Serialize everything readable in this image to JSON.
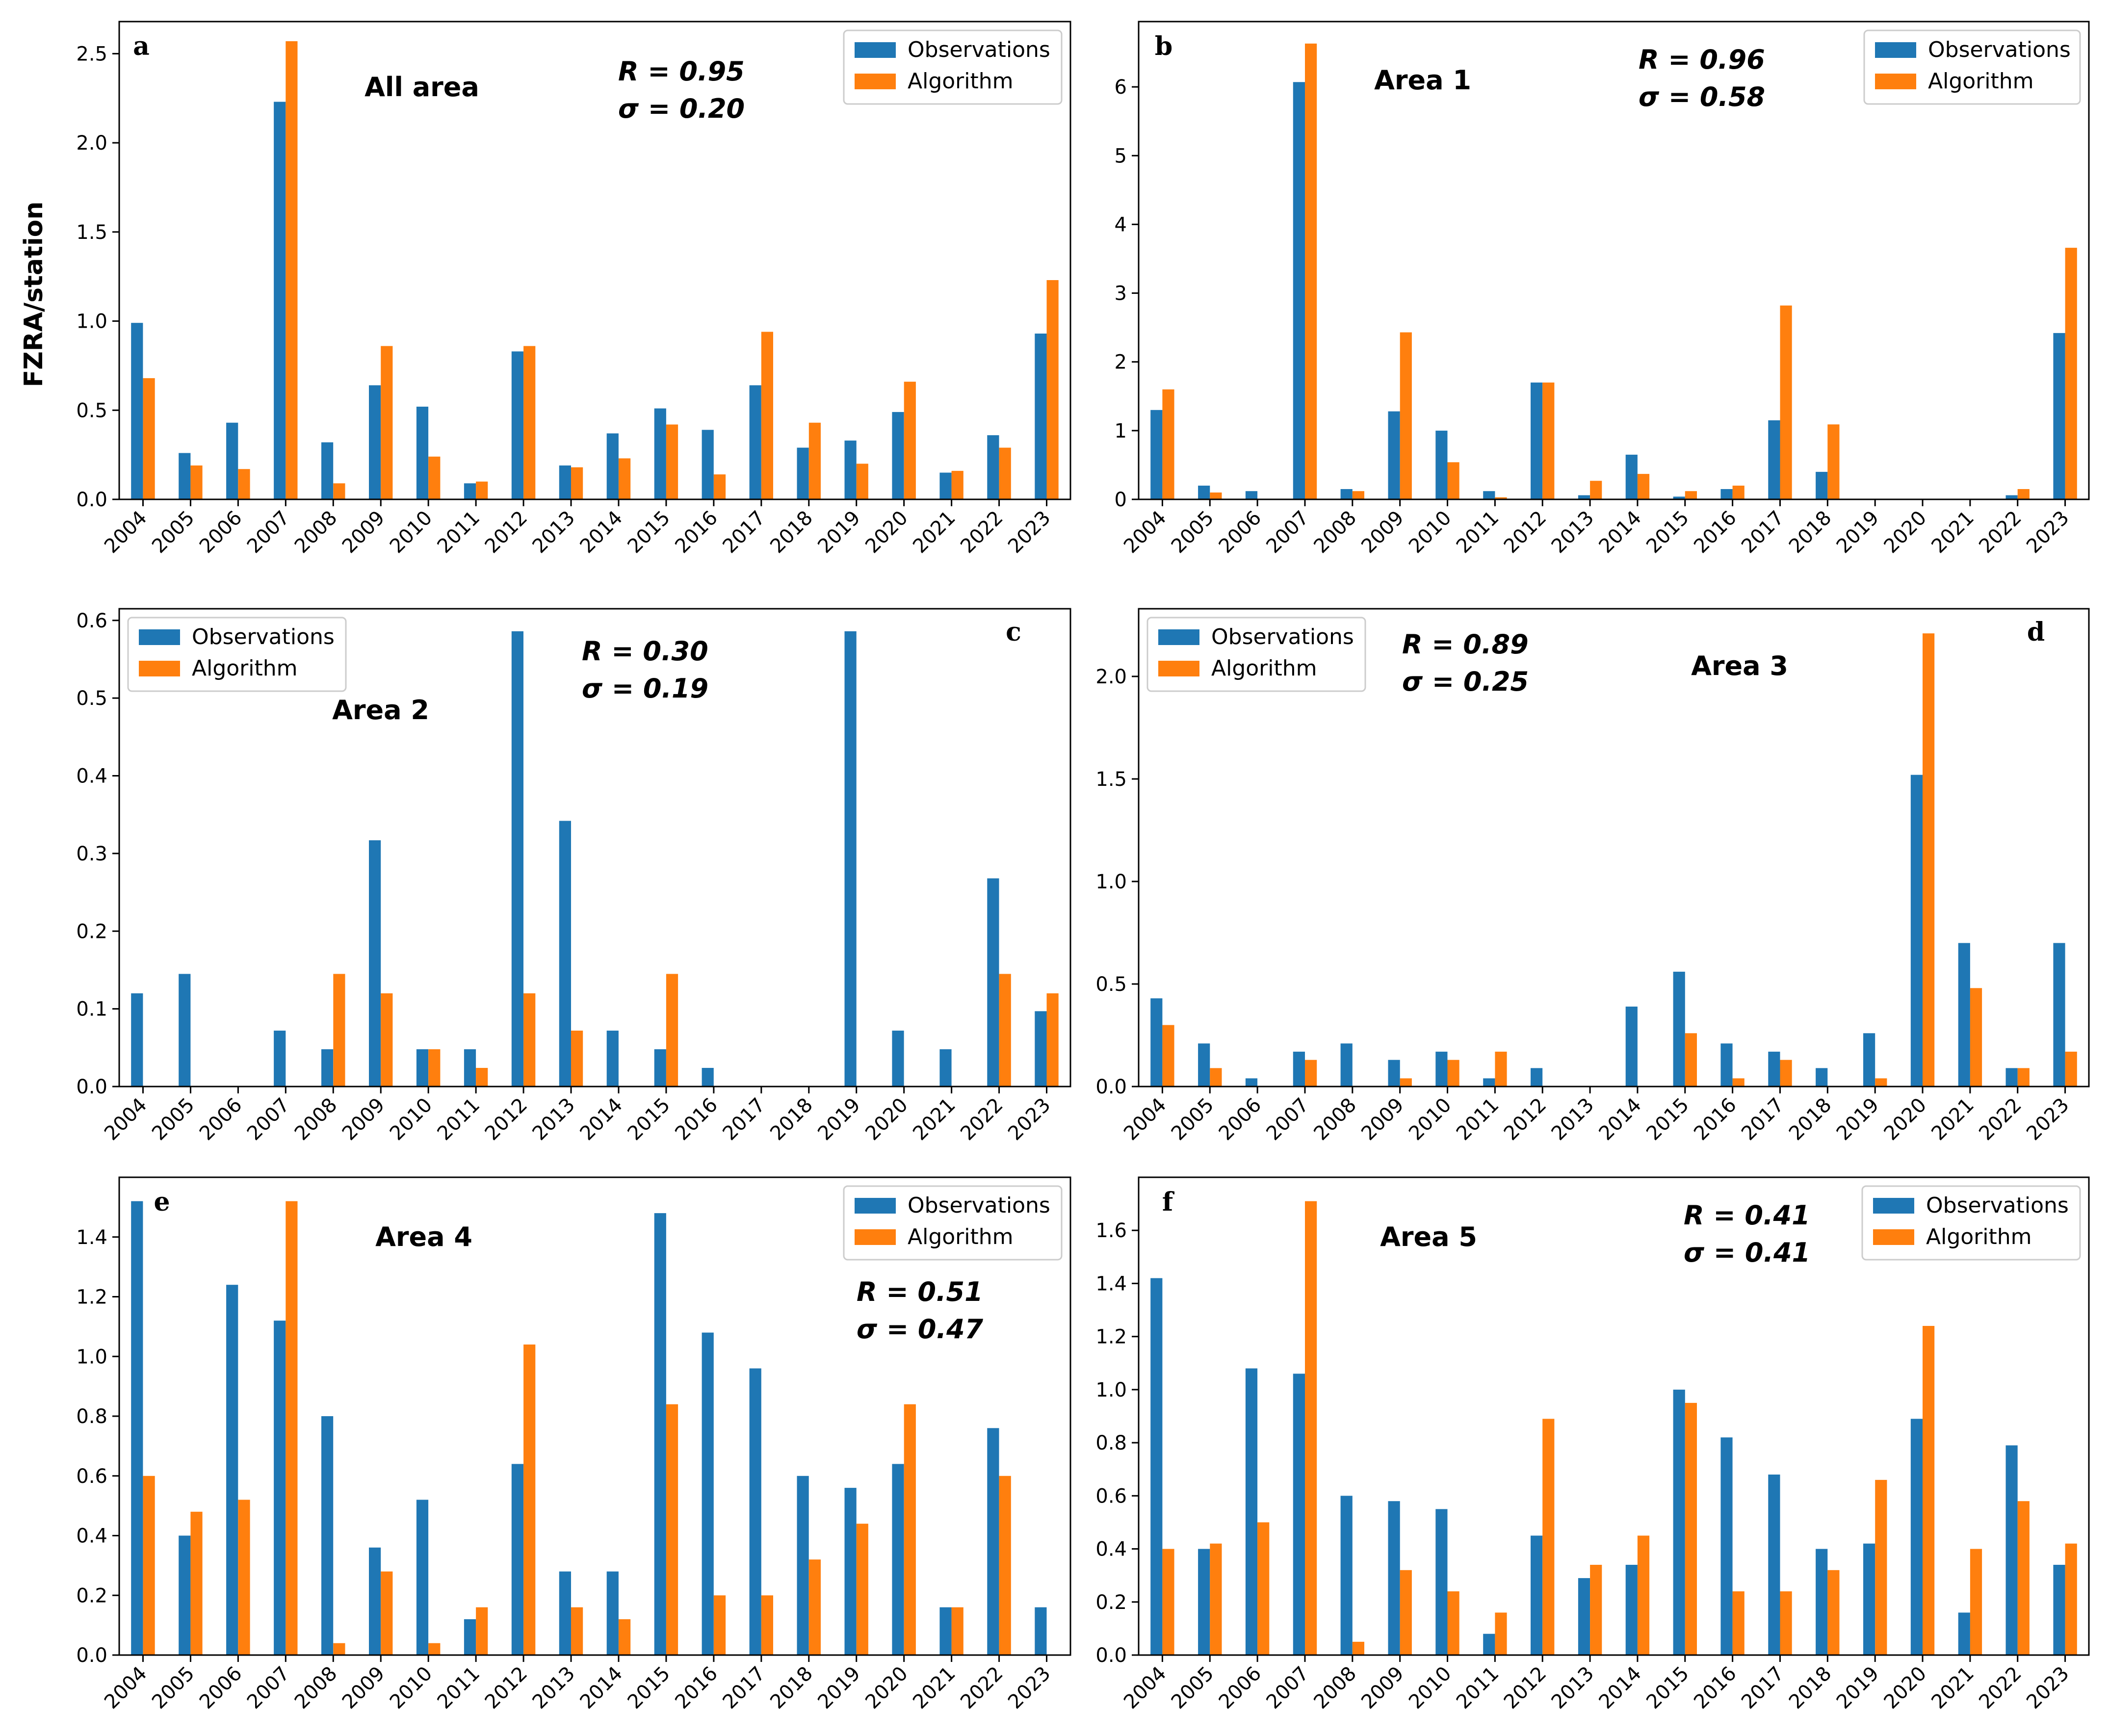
{
  "colors": {
    "observations": "#1f77b4",
    "algorithm": "#ff7f0e"
  },
  "ylabel": "FZRA/station",
  "chart_data": [
    {
      "type": "bar",
      "panel": "a",
      "title": "All area",
      "R": "R = 0.95",
      "sigma": "σ = 0.20",
      "categories": [
        "2004",
        "2005",
        "2006",
        "2007",
        "2008",
        "2009",
        "2010",
        "2011",
        "2012",
        "2013",
        "2014",
        "2015",
        "2016",
        "2017",
        "2018",
        "2019",
        "2020",
        "2021",
        "2022",
        "2023"
      ],
      "series": [
        {
          "name": "Observations",
          "values": [
            0.99,
            0.26,
            0.43,
            2.23,
            0.32,
            0.64,
            0.52,
            0.09,
            0.83,
            0.19,
            0.37,
            0.51,
            0.39,
            0.64,
            0.29,
            0.33,
            0.49,
            0.15,
            0.36,
            0.93
          ]
        },
        {
          "name": "Algorithm",
          "values": [
            0.68,
            0.19,
            0.17,
            2.57,
            0.09,
            0.86,
            0.24,
            0.1,
            0.86,
            0.18,
            0.23,
            0.42,
            0.14,
            0.94,
            0.43,
            0.2,
            0.66,
            0.16,
            0.29,
            1.23
          ]
        }
      ],
      "ylim": [
        0,
        2.68
      ],
      "yticks": [
        0,
        0.5,
        1.0,
        1.5,
        2.0,
        2.5
      ],
      "ytick_labels": [
        "0.0",
        "0.5",
        "1.0",
        "1.5",
        "2.0",
        "2.5"
      ],
      "legend": "top-right",
      "xlabel": "",
      "ylabel": "FZRA/station"
    },
    {
      "type": "bar",
      "panel": "b",
      "title": "Area 1",
      "R": "R = 0.96",
      "sigma": "σ = 0.58",
      "categories": [
        "2004",
        "2005",
        "2006",
        "2007",
        "2008",
        "2009",
        "2010",
        "2011",
        "2012",
        "2013",
        "2014",
        "2015",
        "2016",
        "2017",
        "2018",
        "2019",
        "2020",
        "2021",
        "2022",
        "2023"
      ],
      "series": [
        {
          "name": "Observations",
          "values": [
            1.3,
            0.2,
            0.12,
            6.07,
            0.15,
            1.28,
            1.0,
            0.12,
            1.7,
            0.06,
            0.65,
            0.04,
            0.15,
            1.15,
            0.4,
            0,
            0,
            0,
            0.06,
            2.42
          ]
        },
        {
          "name": "Algorithm",
          "values": [
            1.6,
            0.1,
            0,
            6.63,
            0.12,
            2.43,
            0.54,
            0.03,
            1.7,
            0.27,
            0.37,
            0.12,
            0.2,
            2.82,
            1.09,
            0,
            0,
            0,
            0.15,
            3.66
          ]
        }
      ],
      "ylim": [
        0,
        6.95
      ],
      "yticks": [
        0,
        1,
        2,
        3,
        4,
        5,
        6
      ],
      "ytick_labels": [
        "0",
        "1",
        "2",
        "3",
        "4",
        "5",
        "6"
      ],
      "legend": "top-right",
      "xlabel": "",
      "ylabel": ""
    },
    {
      "type": "bar",
      "panel": "c",
      "title": "Area 2",
      "R": "R = 0.30",
      "sigma": "σ = 0.19",
      "categories": [
        "2004",
        "2005",
        "2006",
        "2007",
        "2008",
        "2009",
        "2010",
        "2011",
        "2012",
        "2013",
        "2014",
        "2015",
        "2016",
        "2017",
        "2018",
        "2019",
        "2020",
        "2021",
        "2022",
        "2023"
      ],
      "series": [
        {
          "name": "Observations",
          "values": [
            0.12,
            0.145,
            0,
            0.072,
            0.048,
            0.317,
            0.048,
            0.048,
            0.586,
            0.342,
            0.072,
            0.048,
            0.024,
            0,
            0,
            0.586,
            0.072,
            0.048,
            0.268,
            0.097
          ]
        },
        {
          "name": "Algorithm",
          "values": [
            0,
            0,
            0,
            0,
            0.145,
            0.12,
            0.048,
            0.024,
            0.12,
            0.072,
            0,
            0.145,
            0,
            0,
            0,
            0,
            0,
            0,
            0.145,
            0.12
          ]
        }
      ],
      "ylim": [
        0,
        0.615
      ],
      "yticks": [
        0,
        0.1,
        0.2,
        0.3,
        0.4,
        0.5,
        0.6
      ],
      "ytick_labels": [
        "0.0",
        "0.1",
        "0.2",
        "0.3",
        "0.4",
        "0.5",
        "0.6"
      ],
      "legend": "top-left",
      "xlabel": "",
      "ylabel": ""
    },
    {
      "type": "bar",
      "panel": "d",
      "title": "Area 3",
      "R": "R = 0.89",
      "sigma": "σ = 0.25",
      "categories": [
        "2004",
        "2005",
        "2006",
        "2007",
        "2008",
        "2009",
        "2010",
        "2011",
        "2012",
        "2013",
        "2014",
        "2015",
        "2016",
        "2017",
        "2018",
        "2019",
        "2020",
        "2021",
        "2022",
        "2023"
      ],
      "series": [
        {
          "name": "Observations",
          "values": [
            0.43,
            0.21,
            0.04,
            0.17,
            0.21,
            0.13,
            0.17,
            0.04,
            0.09,
            0,
            0.39,
            0.56,
            0.21,
            0.17,
            0.09,
            0.26,
            1.52,
            0.7,
            0.09,
            0.7
          ]
        },
        {
          "name": "Algorithm",
          "values": [
            0.3,
            0.09,
            0,
            0.13,
            0,
            0.04,
            0.13,
            0.17,
            0,
            0,
            0,
            0.26,
            0.04,
            0.13,
            0,
            0.04,
            2.21,
            0.48,
            0.09,
            0.17
          ]
        }
      ],
      "ylim": [
        0,
        2.33
      ],
      "yticks": [
        0,
        0.5,
        1.0,
        1.5,
        2.0
      ],
      "ytick_labels": [
        "0.0",
        "0.5",
        "1.0",
        "1.5",
        "2.0"
      ],
      "legend": "top-left",
      "xlabel": "",
      "ylabel": ""
    },
    {
      "type": "bar",
      "panel": "e",
      "title": "Area 4",
      "R": "R = 0.51",
      "sigma": "σ = 0.47",
      "categories": [
        "2004",
        "2005",
        "2006",
        "2007",
        "2008",
        "2009",
        "2010",
        "2011",
        "2012",
        "2013",
        "2014",
        "2015",
        "2016",
        "2017",
        "2018",
        "2019",
        "2020",
        "2021",
        "2022",
        "2023"
      ],
      "series": [
        {
          "name": "Observations",
          "values": [
            1.52,
            0.4,
            1.24,
            1.12,
            0.8,
            0.36,
            0.52,
            0.12,
            0.64,
            0.28,
            0.28,
            1.48,
            1.08,
            0.96,
            0.6,
            0.56,
            0.64,
            0.16,
            0.76,
            0.16
          ]
        },
        {
          "name": "Algorithm",
          "values": [
            0.6,
            0.48,
            0.52,
            1.52,
            0.04,
            0.28,
            0.04,
            0.16,
            1.04,
            0.16,
            0.12,
            0.84,
            0.2,
            0.2,
            0.32,
            0.44,
            0.84,
            0.16,
            0.6,
            0
          ]
        }
      ],
      "ylim": [
        0,
        1.6
      ],
      "yticks": [
        0,
        0.2,
        0.4,
        0.6,
        0.8,
        1.0,
        1.2,
        1.4
      ],
      "ytick_labels": [
        "0.0",
        "0.2",
        "0.4",
        "0.6",
        "0.8",
        "1.0",
        "1.2",
        "1.4"
      ],
      "legend": "top-right",
      "xlabel": "",
      "ylabel": ""
    },
    {
      "type": "bar",
      "panel": "f",
      "title": "Area 5",
      "R": "R = 0.41",
      "sigma": "σ = 0.41",
      "categories": [
        "2004",
        "2005",
        "2006",
        "2007",
        "2008",
        "2009",
        "2010",
        "2011",
        "2012",
        "2013",
        "2014",
        "2015",
        "2016",
        "2017",
        "2018",
        "2019",
        "2020",
        "2021",
        "2022",
        "2023"
      ],
      "series": [
        {
          "name": "Observations",
          "values": [
            1.42,
            0.4,
            1.08,
            1.06,
            0.6,
            0.58,
            0.55,
            0.08,
            0.45,
            0.29,
            0.34,
            1.0,
            0.82,
            0.68,
            0.4,
            0.42,
            0.89,
            0.16,
            0.79,
            0.34
          ]
        },
        {
          "name": "Algorithm",
          "values": [
            0.4,
            0.42,
            0.5,
            1.71,
            0.05,
            0.32,
            0.24,
            0.16,
            0.89,
            0.34,
            0.45,
            0.95,
            0.24,
            0.24,
            0.32,
            0.66,
            1.24,
            0.4,
            0.58,
            0.42
          ]
        }
      ],
      "ylim": [
        0,
        1.8
      ],
      "yticks": [
        0,
        0.2,
        0.4,
        0.6,
        0.8,
        1.0,
        1.2,
        1.4,
        1.6
      ],
      "ytick_labels": [
        "0.0",
        "0.2",
        "0.4",
        "0.6",
        "0.8",
        "1.0",
        "1.2",
        "1.4",
        "1.6"
      ],
      "legend": "top-right",
      "xlabel": "",
      "ylabel": ""
    }
  ]
}
